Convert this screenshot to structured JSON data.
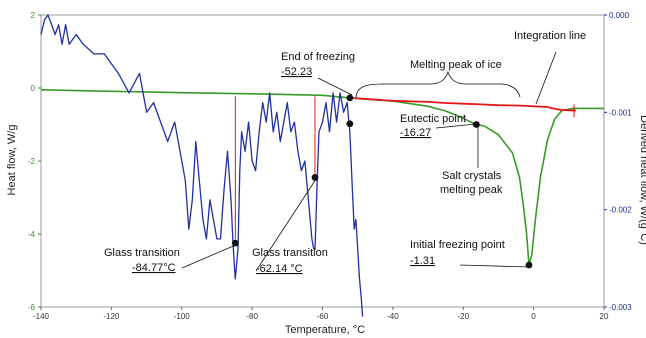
{
  "chart_data": {
    "type": "line",
    "title": "",
    "xlabel": "Temperature, °C",
    "ylabel": "Heat flow, W/g",
    "ylabel_right": "Derived heat flow, W/(g°C)",
    "xlim": [
      -140,
      20
    ],
    "ylim": [
      -6,
      2
    ],
    "ylim_right": [
      -0.003,
      0.0
    ],
    "x_ticks": [
      "-140",
      "-120",
      "-100",
      "-80",
      "-60",
      "-40",
      "-20",
      "0",
      "20"
    ],
    "y_ticks": [
      "2",
      "0",
      "-2",
      "-4",
      "-6"
    ],
    "y_right_ticks": [
      "0.000",
      "-0.001",
      "-0.002",
      "-0.003"
    ],
    "colors": {
      "heat_flow": "#3a9a2a",
      "derivative": "#2030a0",
      "integration": "#e01818",
      "marker": "#111111"
    },
    "series": [
      {
        "axis": "left",
        "color": "#3a9a2a",
        "x": [
          -140,
          -120,
          -100,
          -80,
          -60,
          -52.23,
          -40,
          -30,
          -25,
          -20,
          -17,
          -16.27,
          -14,
          -10,
          -6,
          -4,
          -3,
          -2,
          -1.31,
          -0.5,
          0.5,
          2,
          4,
          6,
          8,
          11,
          15,
          20
        ],
        "y": [
          -0.05,
          -0.09,
          -0.13,
          -0.16,
          -0.2,
          -0.27,
          -0.36,
          -0.5,
          -0.63,
          -0.83,
          -0.97,
          -1.0,
          -1.04,
          -1.28,
          -1.78,
          -2.45,
          -3.15,
          -4.0,
          -4.85,
          -4.55,
          -3.6,
          -2.4,
          -1.4,
          -0.85,
          -0.62,
          -0.56,
          -0.56,
          -0.56
        ]
      },
      {
        "axis": "right",
        "color": "#2030a0",
        "x": [
          -140,
          -139,
          -138,
          -137,
          -136,
          -135,
          -134,
          -133,
          -132,
          -130,
          -128,
          -125,
          -122,
          -118,
          -115,
          -112,
          -110,
          -108,
          -106,
          -104,
          -102,
          -100,
          -99,
          -98,
          -97,
          -96,
          -95,
          -94,
          -93,
          -92,
          -91,
          -90,
          -89,
          -88,
          -87,
          -86,
          -85.5,
          -85,
          -84.77,
          -84,
          -83.5,
          -83,
          -82,
          -81,
          -80,
          -79,
          -78,
          -77,
          -76,
          -75,
          -74,
          -73,
          -72,
          -71,
          -70,
          -69,
          -68,
          -67,
          -66,
          -65,
          -64,
          -63,
          -62.5,
          -62.14,
          -61.5,
          -61,
          -60,
          -59,
          -58,
          -57,
          -56,
          -55,
          -54,
          -53,
          -52.23,
          -52,
          -51.5,
          -51,
          -50.5,
          -50,
          -49.5,
          -49,
          -48.6
        ],
        "y": [
          -0.0002,
          -5e-05,
          0.0,
          -0.0001,
          -0.0002,
          -0.0001,
          -0.0003,
          -0.0001,
          -0.0003,
          -0.0002,
          -0.0003,
          -0.0004,
          -0.0004,
          -0.0006,
          -0.0008,
          -0.0006,
          -0.001,
          -0.0009,
          -0.0011,
          -0.0013,
          -0.0011,
          -0.0015,
          -0.0017,
          -0.0022,
          -0.0019,
          -0.0013,
          -0.0017,
          -0.0021,
          -0.0023,
          -0.0019,
          -0.0021,
          -0.0023,
          -0.0023,
          -0.0018,
          -0.0014,
          -0.0019,
          -0.0023,
          -0.0026,
          -0.00271,
          -0.0024,
          -0.0016,
          -0.0012,
          -0.0014,
          -0.0011,
          -0.0015,
          -0.0016,
          -0.0012,
          -0.0009,
          -0.0011,
          -0.0008,
          -0.0012,
          -0.001,
          -0.0013,
          -0.0011,
          -0.0009,
          -0.0012,
          -0.0011,
          -0.0014,
          -0.0016,
          -0.0015,
          -0.0019,
          -0.0023,
          -0.0024,
          -0.00241,
          -0.0017,
          -0.0012,
          -0.0011,
          -0.0009,
          -0.0012,
          -0.0008,
          -0.0011,
          -0.0008,
          -0.001,
          -0.0009,
          -0.0012,
          -0.0014,
          -0.0018,
          -0.0022,
          -0.0021,
          -0.0024,
          -0.0027,
          -0.0029,
          -0.0031
        ]
      },
      {
        "axis": "left",
        "color": "#e01818",
        "x": [
          -52.23,
          -40,
          -30,
          -25,
          -20,
          -15,
          -10,
          -5,
          -2,
          0,
          2,
          4,
          5,
          6,
          7,
          8,
          10,
          12
        ],
        "y": [
          -0.27,
          -0.35,
          -0.38,
          -0.41,
          -0.43,
          -0.45,
          -0.47,
          -0.48,
          -0.49,
          -0.5,
          -0.51,
          -0.52,
          -0.55,
          -0.57,
          -0.59,
          -0.6,
          -0.61,
          -0.62
        ]
      }
    ],
    "vertical_lines": [
      {
        "x": -84.77,
        "y_top": -0.23,
        "y_bottom": -4.15
      },
      {
        "x": -62.14,
        "y_top": -0.23,
        "y_bottom": -2.35
      },
      {
        "x": 11.5,
        "y_top": -0.45,
        "y_bottom": -0.8
      }
    ],
    "markers": [
      {
        "x": -84.77,
        "y": -4.25
      },
      {
        "x": -62.14,
        "y": -2.45
      },
      {
        "x": -52.23,
        "y": -0.27
      },
      {
        "x": -52.23,
        "y": -0.98
      },
      {
        "x": -16.27,
        "y": -1.0
      },
      {
        "x": -1.31,
        "y": -4.85
      }
    ],
    "annotations": [
      {
        "line1": "End of freezing",
        "line2": "-52.23"
      },
      {
        "line1": "Melting peak of ice",
        "line2": ""
      },
      {
        "line1": "Integration line",
        "line2": ""
      },
      {
        "line1": "Eutectic point",
        "line2": "-16.27"
      },
      {
        "line1": "Salt crystals",
        "line2": "melting peak"
      },
      {
        "line1": "Initial freezing point",
        "line2": "-1.31"
      },
      {
        "line1": "Glass transition",
        "line2": "-84.77°C"
      },
      {
        "line1": "Glass transition",
        "line2": "-62.14 °C"
      }
    ]
  }
}
